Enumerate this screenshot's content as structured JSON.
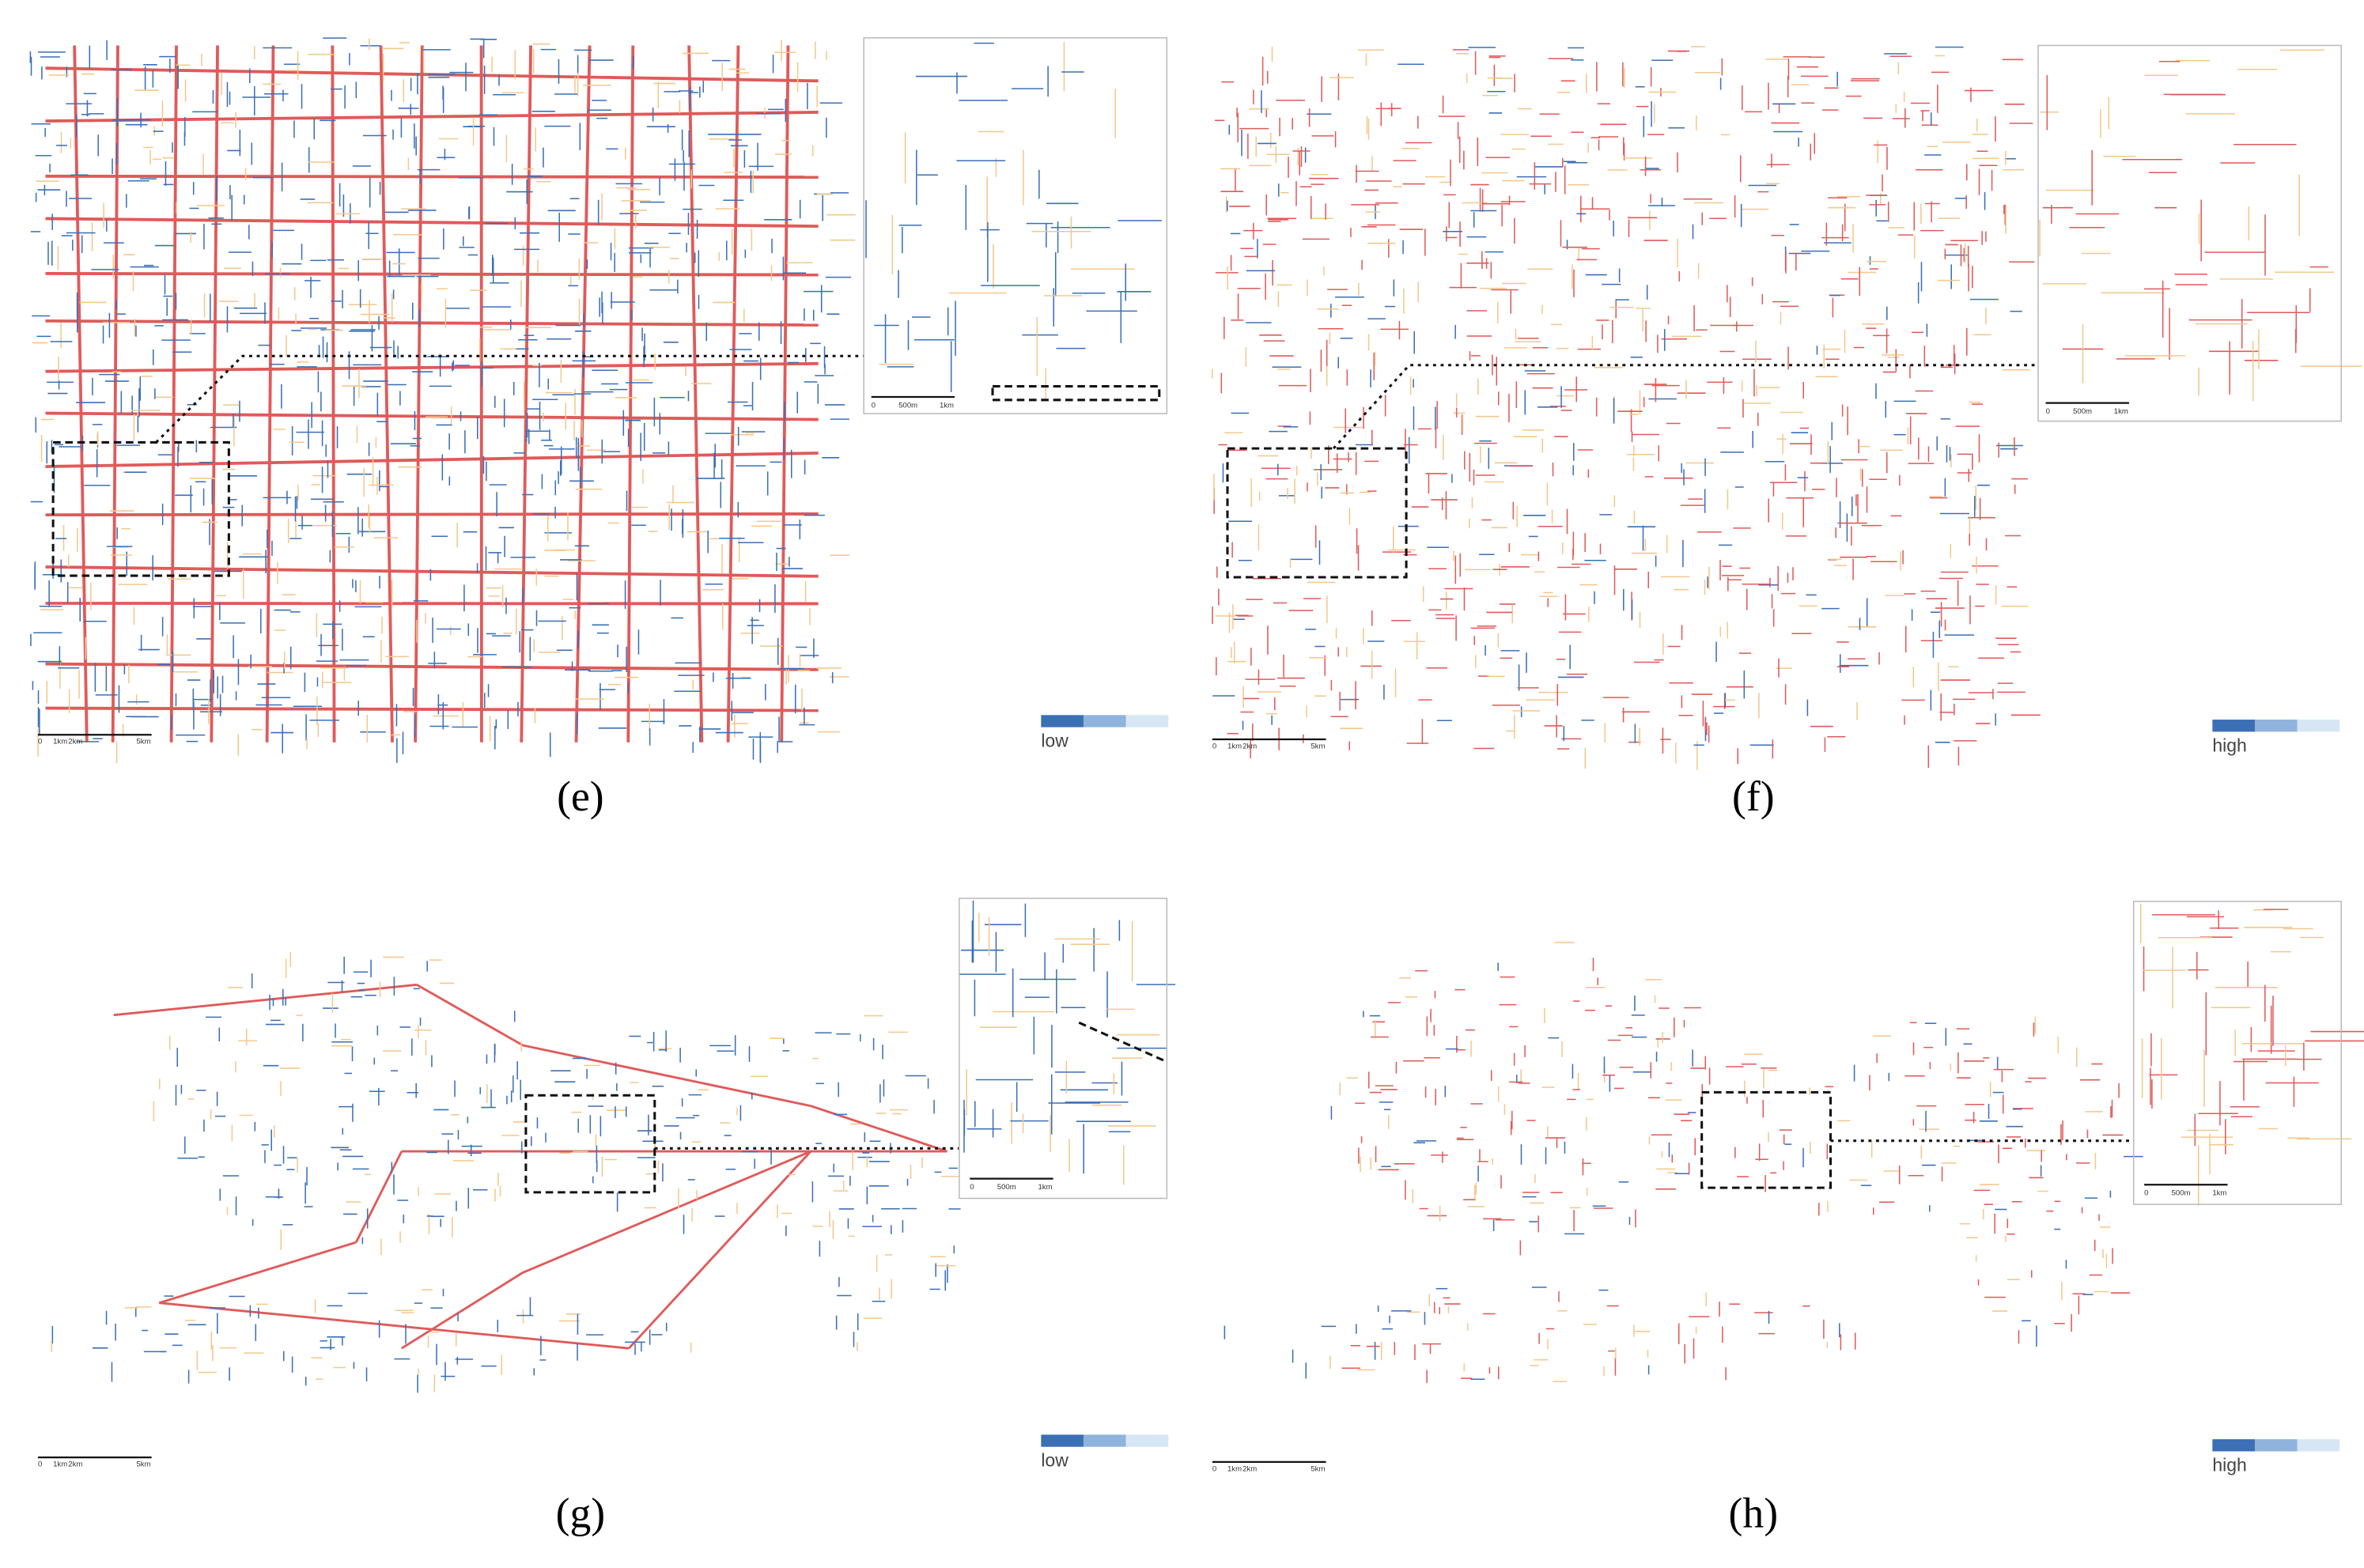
{
  "panels": [
    {
      "label": "(e)",
      "legend": "low",
      "scale": [
        "0",
        "1km",
        "2km",
        "5km"
      ],
      "inset_scale": [
        "0",
        "500m",
        "1km"
      ]
    },
    {
      "label": "(f)",
      "legend": "high",
      "scale": [
        "0",
        "1km",
        "2km",
        "5km"
      ],
      "inset_scale": [
        "0",
        "500m",
        "1km"
      ]
    },
    {
      "label": "(g)",
      "legend": "low",
      "scale": [
        "0",
        "1km",
        "2km",
        "5km"
      ],
      "inset_scale": [
        "0",
        "500m",
        "1km"
      ]
    },
    {
      "label": "(h)",
      "legend": "high",
      "scale": [
        "0",
        "1km",
        "2km",
        "5km"
      ],
      "inset_scale": [
        "0",
        "500m",
        "1km"
      ]
    }
  ]
}
